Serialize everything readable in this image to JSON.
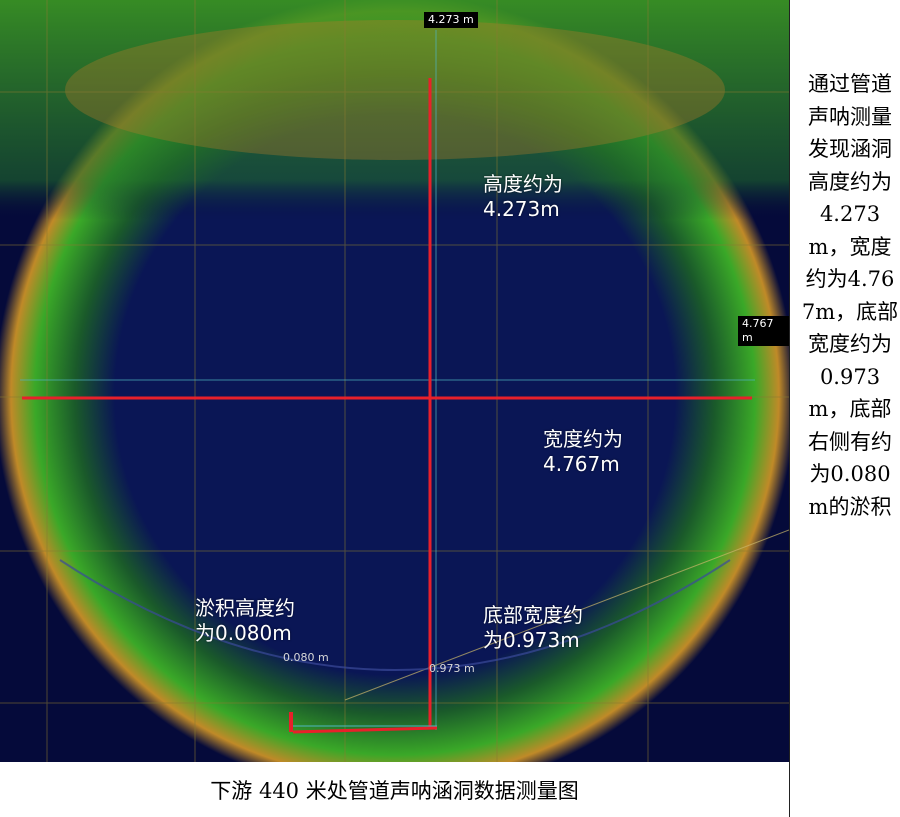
{
  "tags": {
    "height_tag": "4.273 m",
    "width_tag": "4.767 m",
    "sediment_small": "0.080 m",
    "bottom_small": "0.973 m"
  },
  "labels": {
    "height": "高度约为\n4.273m",
    "width": "宽度约为\n4.767m",
    "sediment": "淤积高度约\n为0.080m",
    "bottom": "底部宽度约\n为0.973m"
  },
  "side_text": "通过管道声呐测量发现涵洞高度约为4.273m，宽度约为4.767m，底部宽度约为0.973m，底部右侧有约为0.080m的淤积",
  "caption": "下游 440 米处管道声呐涵洞数据测量图",
  "colors": {
    "background": "#050a3a",
    "measure_line": "#e8202a",
    "grid": "#8a7a30",
    "ring": "#2fa02a"
  }
}
